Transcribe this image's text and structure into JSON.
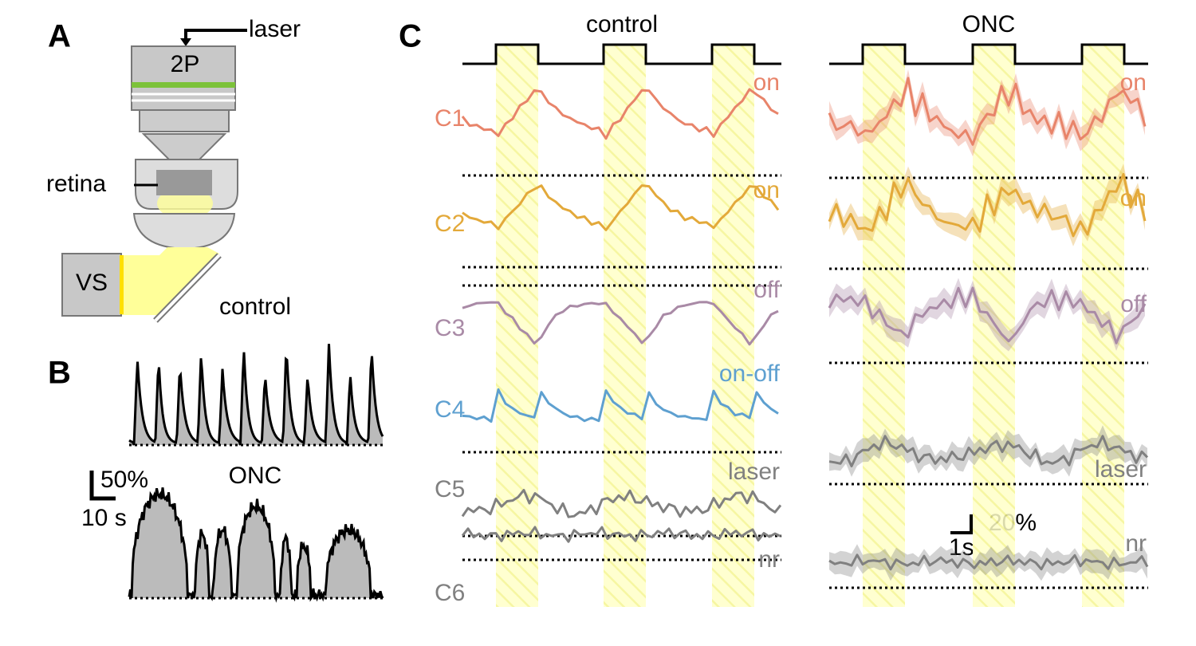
{
  "panel_a": {
    "label": "A",
    "laser": "laser",
    "objective": "2P",
    "retina": "retina",
    "stimulator": "VS"
  },
  "panel_b": {
    "label": "B",
    "traces": [
      "control",
      "ONC"
    ],
    "scale_y": "50%",
    "scale_x": "10 s"
  },
  "panel_c": {
    "label": "C",
    "conditions": [
      "control",
      "ONC"
    ],
    "clusters": [
      {
        "name": "C1",
        "control_type": "on",
        "onc_type": "on"
      },
      {
        "name": "C2",
        "control_type": "on",
        "onc_type": "on"
      },
      {
        "name": "C3",
        "control_type": "off",
        "onc_type": "off"
      },
      {
        "name": "C4",
        "control_type": "on-off"
      },
      {
        "name": "C5",
        "control_type": "laser",
        "onc_type": "laser"
      },
      {
        "name": "C6",
        "control_type": "nr",
        "onc_type": "nr"
      }
    ],
    "scale_y": "20%",
    "scale_x": "1s"
  }
}
